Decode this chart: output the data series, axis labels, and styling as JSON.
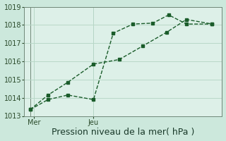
{
  "xlabel": "Pression niveau de la mer( hPa )",
  "ylim": [
    1013,
    1019
  ],
  "xlim": [
    0,
    10
  ],
  "yticks": [
    1013,
    1014,
    1015,
    1016,
    1017,
    1018,
    1019
  ],
  "xtick_positions": [
    0.5,
    3.5
  ],
  "xtick_labels": [
    "Mer",
    "Jeu"
  ],
  "vline_positions": [
    0.3,
    3.5
  ],
  "background_color": "#cce8dc",
  "plot_bg_color": "#ddf0e8",
  "line_color": "#1a5c2a",
  "grid_color": "#b8d8c8",
  "line1_x": [
    0.3,
    1.2,
    2.2,
    3.5,
    4.5,
    5.5,
    6.5,
    7.3,
    8.2,
    9.5
  ],
  "line1_y": [
    1013.35,
    1013.9,
    1014.15,
    1013.9,
    1017.55,
    1018.05,
    1018.1,
    1018.55,
    1018.05,
    1018.05
  ],
  "line2_x": [
    0.3,
    1.2,
    2.2,
    3.5,
    4.8,
    6.0,
    7.2,
    8.2,
    9.5
  ],
  "line2_y": [
    1013.35,
    1014.15,
    1014.85,
    1015.85,
    1016.1,
    1016.85,
    1017.6,
    1018.3,
    1018.05
  ],
  "fontsize_xlabel": 9,
  "fontsize_ytick": 7,
  "fontsize_xtick": 7
}
